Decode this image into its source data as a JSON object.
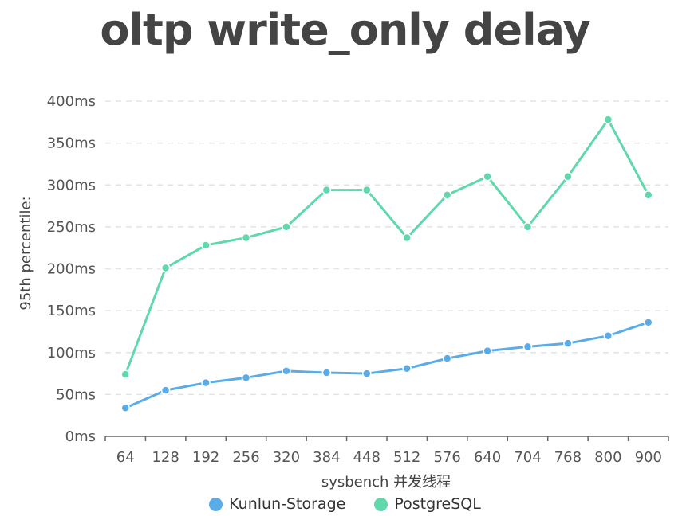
{
  "colors": {
    "kunlun": "#5aace8",
    "postgres": "#5fd8ab",
    "grid": "#e3e3e3",
    "axis": "#666666"
  },
  "chart_data": {
    "type": "line",
    "title": "oltp write_only delay",
    "xlabel": "sysbench 并发线程",
    "ylabel": "95th percentile:",
    "categories": [
      "64",
      "128",
      "192",
      "256",
      "320",
      "384",
      "448",
      "512",
      "576",
      "640",
      "704",
      "768",
      "800",
      "900"
    ],
    "ylim": [
      0,
      400
    ],
    "yticks": [
      "0ms",
      "50ms",
      "100ms",
      "150ms",
      "200ms",
      "250ms",
      "300ms",
      "350ms",
      "400ms"
    ],
    "grid": true,
    "legend_position": "bottom-center",
    "series": [
      {
        "name": "Kunlun-Storage",
        "color": "#5aace8",
        "values": [
          34,
          55,
          64,
          70,
          78,
          76,
          75,
          81,
          93,
          102,
          107,
          111,
          120,
          136
        ]
      },
      {
        "name": "PostgreSQL",
        "color": "#5fd8ab",
        "values": [
          74,
          201,
          228,
          237,
          250,
          294,
          294,
          237,
          288,
          310,
          250,
          310,
          378,
          288
        ]
      }
    ]
  }
}
